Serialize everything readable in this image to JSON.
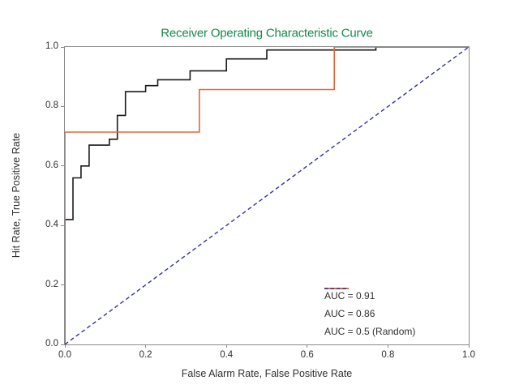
{
  "chart_data": {
    "type": "line",
    "title": "Receiver Operating Characteristic Curve",
    "title_color": "#128a4a",
    "xlabel": "False Alarm Rate, False Positive Rate",
    "ylabel": "Hit Rate, True Positive Rate",
    "xlim": [
      0.0,
      1.0
    ],
    "ylim": [
      0.0,
      1.0
    ],
    "x_ticks": [
      "0.0",
      "0.2",
      "0.4",
      "0.6",
      "0.8",
      "1.0"
    ],
    "y_ticks": [
      "0.0",
      "0.2",
      "0.4",
      "0.6",
      "0.8",
      "1.0"
    ],
    "grid": false,
    "legend_position": "lower right",
    "spine_color": "#8a8a8a",
    "series": [
      {
        "name": "AUC = 0.91",
        "color": "#1a1a1a",
        "style": "solid",
        "points": [
          [
            0,
            0
          ],
          [
            0,
            0.42
          ],
          [
            0.02,
            0.42
          ],
          [
            0.02,
            0.56
          ],
          [
            0.04,
            0.56
          ],
          [
            0.04,
            0.6
          ],
          [
            0.06,
            0.6
          ],
          [
            0.06,
            0.67
          ],
          [
            0.11,
            0.67
          ],
          [
            0.11,
            0.69
          ],
          [
            0.13,
            0.69
          ],
          [
            0.13,
            0.77
          ],
          [
            0.15,
            0.77
          ],
          [
            0.15,
            0.85
          ],
          [
            0.2,
            0.85
          ],
          [
            0.2,
            0.87
          ],
          [
            0.23,
            0.87
          ],
          [
            0.23,
            0.89
          ],
          [
            0.31,
            0.89
          ],
          [
            0.31,
            0.92
          ],
          [
            0.4,
            0.92
          ],
          [
            0.4,
            0.96
          ],
          [
            0.5,
            0.96
          ],
          [
            0.5,
            0.99
          ],
          [
            0.77,
            0.99
          ],
          [
            0.77,
            1.0
          ],
          [
            1.0,
            1.0
          ]
        ]
      },
      {
        "name": "AUC = 0.86",
        "color": "#ec6238",
        "style": "solid",
        "points": [
          [
            0,
            0
          ],
          [
            0,
            0.714
          ],
          [
            0.333,
            0.714
          ],
          [
            0.333,
            0.857
          ],
          [
            0.667,
            0.857
          ],
          [
            0.667,
            1.0
          ],
          [
            1.0,
            1.0
          ]
        ]
      },
      {
        "name": "AUC = 0.5 (Random)",
        "color": "#3232a0",
        "style": "dashed",
        "points": [
          [
            0,
            0
          ],
          [
            1.0,
            1.0
          ]
        ]
      }
    ]
  }
}
